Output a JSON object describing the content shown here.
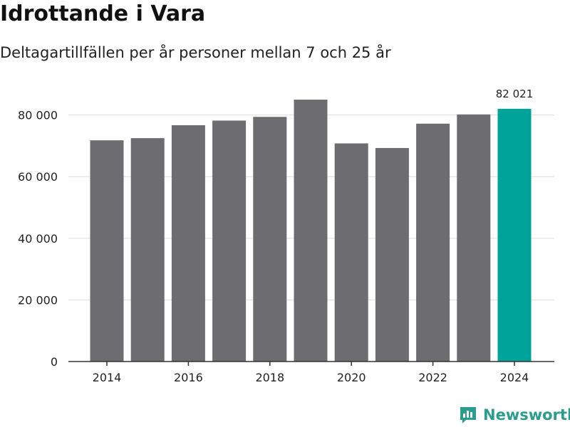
{
  "header": {
    "title": "Idrottande i Vara",
    "subtitle": "Deltagartillfällen per år personer mellan 7 och 25 år"
  },
  "brand": {
    "name": "Newsworthy",
    "icon": "newsworthy-logo-icon"
  },
  "colors": {
    "bar": "#6d6c71",
    "highlight": "#00a39a",
    "grid": "#dddddd",
    "axis": "#333333",
    "text": "#222222"
  },
  "chart_data": {
    "type": "bar",
    "title": "Idrottande i Vara",
    "subtitle": "Deltagartillfällen per år personer mellan 7 och 25 år",
    "xlabel": "",
    "ylabel": "",
    "categories": [
      2014,
      2015,
      2016,
      2017,
      2018,
      2019,
      2020,
      2021,
      2022,
      2023,
      2024
    ],
    "values": [
      71800,
      72500,
      76700,
      78200,
      79400,
      85000,
      70800,
      69300,
      77200,
      80200,
      82021
    ],
    "highlight_index": 10,
    "highlight_label": "82 021",
    "ylim": [
      0,
      85000
    ],
    "yticks": [
      0,
      20000,
      40000,
      60000,
      80000
    ],
    "ytick_labels": [
      "0",
      "20 000",
      "40 000",
      "60 000",
      "80 000"
    ],
    "xtick_labels": [
      "2014",
      "2016",
      "2018",
      "2020",
      "2022",
      "2024"
    ],
    "grid": true,
    "legend": "none"
  }
}
